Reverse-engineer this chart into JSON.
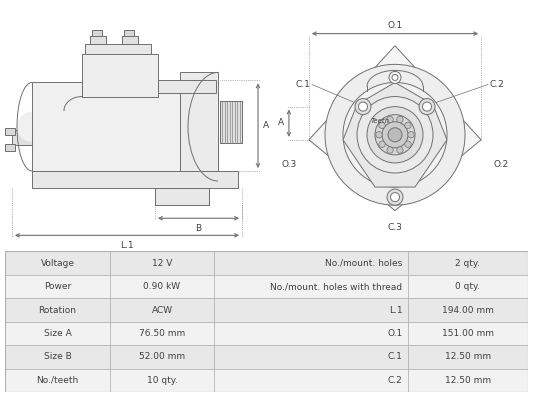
{
  "title": "",
  "table_data": {
    "left_labels": [
      "Voltage",
      "Power",
      "Rotation",
      "Size A",
      "Size B",
      "No./teeth"
    ],
    "left_values": [
      "12 V",
      "0.90 kW",
      "ACW",
      "76.50 mm",
      "52.00 mm",
      "10 qty."
    ],
    "right_labels": [
      "No./mount. holes",
      "No./mount. holes with thread",
      "L.1",
      "O.1",
      "C.1",
      "C.2"
    ],
    "right_values": [
      "2 qty.",
      "0 qty.",
      "194.00 mm",
      "151.00 mm",
      "12.50 mm",
      "12.50 mm"
    ]
  },
  "row_colors": [
    "#e8e8e8",
    "#f2f2f2",
    "#e8e8e8",
    "#f2f2f2",
    "#e8e8e8",
    "#f2f2f2"
  ],
  "border_color": "#b0b0b0",
  "text_color": "#404040",
  "diagram_bg": "#ffffff",
  "line_color": "#707070",
  "figure_bg": "#ffffff"
}
